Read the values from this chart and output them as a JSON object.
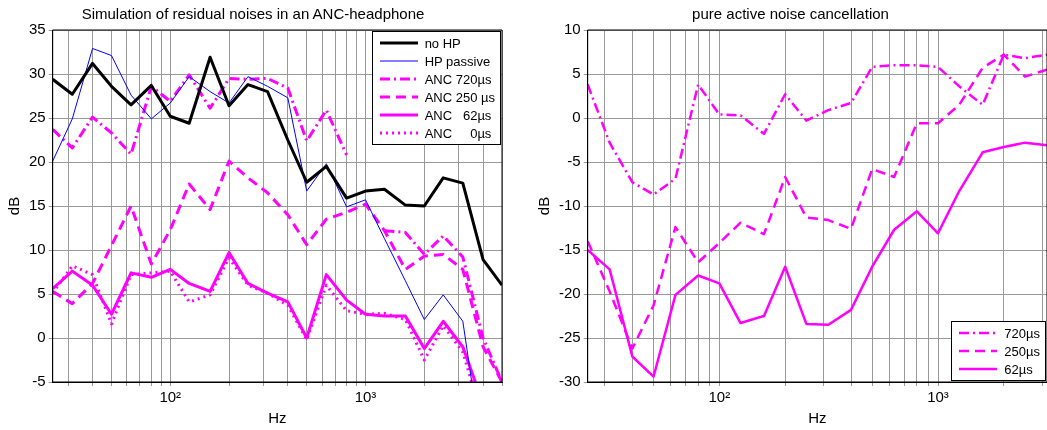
{
  "chart_data": [
    {
      "type": "line",
      "title": "Simulation of residual noises in an ANC-headphone",
      "xlabel": "Hz",
      "ylabel": "dB",
      "log": "x",
      "grid": true,
      "legend": "top right",
      "x": [
        25,
        31.5,
        40,
        50,
        63,
        80,
        100,
        125,
        160,
        200,
        250,
        315,
        400,
        500,
        630,
        800,
        1000,
        1250,
        1600,
        2000,
        2500,
        3150,
        4000,
        5000
      ],
      "xlim": [
        25,
        5000
      ],
      "xticks": [
        {
          "value": 30,
          "label": null
        },
        {
          "value": 40,
          "label": null
        },
        {
          "value": 50,
          "label": null
        },
        {
          "value": 60,
          "label": null
        },
        {
          "value": 70,
          "label": null
        },
        {
          "value": 80,
          "label": null
        },
        {
          "value": 90,
          "label": null
        },
        {
          "value": 100,
          "label": "10²"
        },
        {
          "value": 200,
          "label": null
        },
        {
          "value": 300,
          "label": null
        },
        {
          "value": 400,
          "label": null
        },
        {
          "value": 500,
          "label": null
        },
        {
          "value": 600,
          "label": null
        },
        {
          "value": 700,
          "label": null
        },
        {
          "value": 800,
          "label": null
        },
        {
          "value": 900,
          "label": null
        },
        {
          "value": 1000,
          "label": "10³"
        },
        {
          "value": 2000,
          "label": null
        },
        {
          "value": 3000,
          "label": null
        },
        {
          "value": 4000,
          "label": null
        },
        {
          "value": 5000,
          "label": null
        }
      ],
      "ylim": [
        -5,
        35
      ],
      "yticks": [
        -5,
        0,
        5,
        10,
        15,
        20,
        25,
        30,
        35
      ],
      "series": [
        {
          "name": "no HP",
          "color": "#000000",
          "line_style": "solid",
          "values": [
            29.4,
            27.7,
            31.2,
            28.6,
            26.5,
            28.7,
            25.2,
            24.4,
            31.9,
            26.4,
            28.8,
            28.0,
            22.5,
            17.7,
            19.5,
            15.9,
            16.7,
            16.9,
            15.1,
            15.0,
            18.2,
            17.6,
            8.9,
            6.0
          ]
        },
        {
          "name": "HP passive",
          "color": "#0000ff",
          "line_style": "solid",
          "x": [
            25,
            31.5,
            40,
            50,
            63,
            80,
            100,
            125,
            160,
            200,
            250,
            315,
            400,
            500,
            630,
            800,
            1000,
            1250,
            1600,
            2000,
            2500,
            3150,
            3500
          ],
          "values": [
            20.1,
            24.9,
            32.9,
            32.1,
            27.6,
            24.9,
            26.7,
            29.7,
            28.0,
            26.7,
            29.7,
            28.6,
            27.3,
            16.7,
            19.8,
            14.9,
            15.7,
            11.3,
            6.5,
            2.1,
            4.9,
            1.9,
            -5
          ]
        },
        {
          "name": "ANC 720µs",
          "color": "#ff00ff",
          "line_style": "dashdot",
          "values": [
            23.7,
            21.6,
            25.1,
            23.3,
            20.9,
            28.6,
            26.9,
            29.9,
            26.1,
            29.5,
            29.4,
            29.5,
            28.4,
            22.4,
            25.9,
            20.8,
            null,
            12.2,
            12.0,
            9.5,
            11.6,
            9.2,
            0,
            -5
          ]
        },
        {
          "name": "ANC 250 µs",
          "color": "#ff00ff",
          "line_style": "dashed",
          "values": [
            5.3,
            3.9,
            6.2,
            10.5,
            15.0,
            8.4,
            12.3,
            17.5,
            14.6,
            20.1,
            18.2,
            16.5,
            14.0,
            10.6,
            13.5,
            14.3,
            15.2,
            12.2,
            7.8,
            9.3,
            9.5,
            7.8,
            -1,
            -5
          ]
        },
        {
          "name": "ANC   62µs",
          "color": "#ff00ff",
          "line_style": "solid",
          "x": [
            25,
            31.5,
            40,
            50,
            63,
            80,
            100,
            125,
            160,
            200,
            250,
            315,
            400,
            500,
            630,
            800,
            1000,
            1250,
            1600,
            2000,
            2500,
            3150,
            3650
          ],
          "values": [
            5.6,
            7.6,
            6.0,
            2.7,
            7.4,
            6.9,
            7.8,
            6.2,
            5.3,
            9.7,
            6.2,
            5.1,
            4.1,
            0,
            7.2,
            4.3,
            2.7,
            2.5,
            2.5,
            -1.2,
            1.9,
            -1.0,
            -5
          ]
        },
        {
          "name": "ANC     0µs",
          "color": "#ff00ff",
          "line_style": "dotted",
          "x": [
            25,
            31.5,
            40,
            50,
            63,
            80,
            100,
            125,
            160,
            200,
            250,
            315,
            400,
            500,
            630,
            800,
            1000,
            1250,
            1600,
            2000,
            2500,
            3150,
            3500
          ],
          "values": [
            5.1,
            8.2,
            7.2,
            1.6,
            7.2,
            7.4,
            7.6,
            4.1,
            4.9,
            9.1,
            6.0,
            5.1,
            3.7,
            -0.2,
            6.0,
            3.1,
            2.7,
            2.8,
            2.1,
            -2.5,
            1.4,
            -1.6,
            -5
          ]
        }
      ]
    },
    {
      "type": "line",
      "title": "pure active noise cancellation",
      "xlabel": "Hz",
      "ylabel": "dB",
      "log": "x",
      "grid": true,
      "legend": "bottom right",
      "x": [
        25,
        31.5,
        40,
        50,
        63,
        80,
        100,
        125,
        160,
        200,
        250,
        315,
        400,
        500,
        630,
        800,
        1000,
        1250,
        1600,
        2000,
        2500,
        3150
      ],
      "xlim": [
        25,
        3150
      ],
      "xticks": [
        {
          "value": 30,
          "label": null
        },
        {
          "value": 40,
          "label": null
        },
        {
          "value": 50,
          "label": null
        },
        {
          "value": 60,
          "label": null
        },
        {
          "value": 70,
          "label": null
        },
        {
          "value": 80,
          "label": null
        },
        {
          "value": 90,
          "label": null
        },
        {
          "value": 100,
          "label": "10²"
        },
        {
          "value": 200,
          "label": null
        },
        {
          "value": 300,
          "label": null
        },
        {
          "value": 400,
          "label": null
        },
        {
          "value": 500,
          "label": null
        },
        {
          "value": 600,
          "label": null
        },
        {
          "value": 700,
          "label": null
        },
        {
          "value": 800,
          "label": null
        },
        {
          "value": 900,
          "label": null
        },
        {
          "value": 1000,
          "label": "10³"
        },
        {
          "value": 2000,
          "label": null
        },
        {
          "value": 3000,
          "label": null
        }
      ],
      "ylim": [
        -30,
        10
      ],
      "yticks": [
        -30,
        -25,
        -20,
        -15,
        -10,
        -5,
        0,
        5,
        10
      ],
      "series": [
        {
          "name": "720µs",
          "color": "#ff00ff",
          "line_style": "dashdot",
          "values": [
            3.8,
            -2.8,
            -7.3,
            -8.7,
            -6.9,
            3.8,
            0.4,
            0.3,
            -1.8,
            2.7,
            -0.3,
            0.9,
            1.7,
            5.8,
            6.0,
            6.0,
            5.8,
            3.6,
            1.5,
            7.2,
            6.8,
            7.2
          ]
        },
        {
          "name": "250µs",
          "color": "#ff00ff",
          "line_style": "dashed",
          "values": [
            -14.0,
            -19.7,
            -26.2,
            -21.3,
            -12.4,
            -16.4,
            -14.2,
            -11.9,
            -13.2,
            -6.7,
            -11.3,
            -11.6,
            -12.6,
            -5.8,
            -6.7,
            -0.6,
            -0.6,
            1.5,
            5.7,
            7.2,
            4.7,
            5.5
          ]
        },
        {
          "name": "62µs",
          "color": "#ff00ff",
          "line_style": "solid",
          "values": [
            -15.0,
            -17.2,
            -27.1,
            -29.4,
            -20.1,
            -17.9,
            -18.8,
            -23.3,
            -22.5,
            -16.9,
            -23.4,
            -23.5,
            -21.8,
            -16.9,
            -12.7,
            -10.6,
            -13.1,
            -8.3,
            -3.9,
            -3.3,
            -2.8,
            -3.1
          ]
        }
      ]
    }
  ]
}
